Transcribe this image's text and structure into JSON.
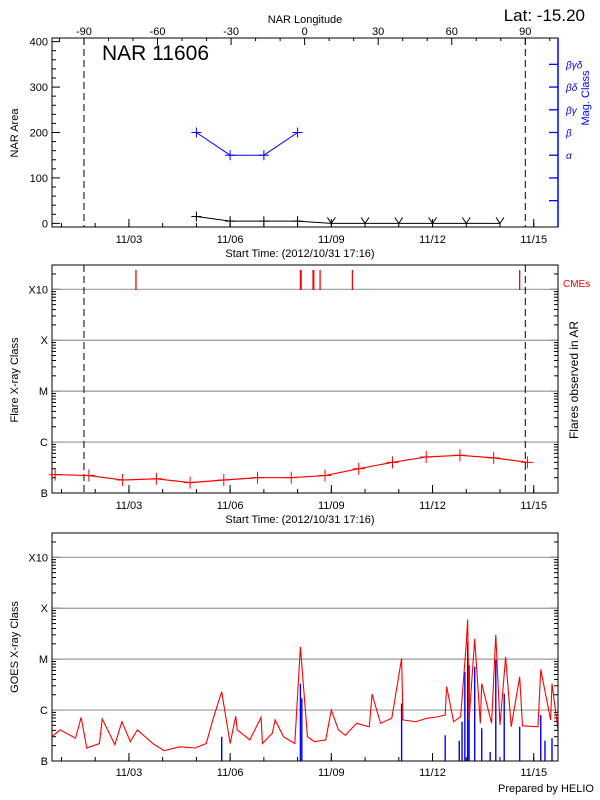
{
  "header": {
    "lat_label": "Lat: -15.20"
  },
  "footer": {
    "credit": "Prepared by HELIO"
  },
  "colors": {
    "axis": "#000000",
    "grid": "#999999",
    "mag": "#0000ff",
    "flare": "#ff0000",
    "goes_long": "#ff0000",
    "goes_short": "#0000ff"
  },
  "chart_data": [
    {
      "type": "line",
      "title": "NAR 11606",
      "xlabel": "Start Time: (2012/10/31 17:16)",
      "ylabel": "NAR Area",
      "y2label": "Mag. Class",
      "top_axis_label": "NAR Longitude",
      "top_ticks": [
        -90,
        -60,
        -30,
        0,
        30,
        60,
        90
      ],
      "limb_dates": [
        "2012-11-01T16:00",
        "2012-11-14T18:00"
      ],
      "xlim": [
        "2012-10-31T17:16",
        "2012-11-15T17:16"
      ],
      "x_ticks": [
        "11/03",
        "11/06",
        "11/09",
        "11/12",
        "11/15"
      ],
      "ylim": [
        -8,
        408
      ],
      "y_ticks": [
        0,
        100,
        200,
        300,
        400
      ],
      "y2_ticks": [
        {
          "value": 50,
          "label": ""
        },
        {
          "value": 100,
          "label": ""
        },
        {
          "value": 150,
          "label": "α"
        },
        {
          "value": 200,
          "label": "β"
        },
        {
          "value": 250,
          "label": "βγ"
        },
        {
          "value": 300,
          "label": "βδ"
        },
        {
          "value": 350,
          "label": "βγδ"
        }
      ],
      "area_series": [
        {
          "date": "2012-11-05T00:00",
          "value": 15
        },
        {
          "date": "2012-11-06T00:00",
          "value": 5
        },
        {
          "date": "2012-11-07T00:00",
          "value": 5
        },
        {
          "date": "2012-11-08T00:00",
          "value": 5
        },
        {
          "date": "2012-11-09T00:00",
          "value": 0
        },
        {
          "date": "2012-11-10T00:00",
          "value": 0
        },
        {
          "date": "2012-11-11T00:00",
          "value": 0
        },
        {
          "date": "2012-11-12T00:00",
          "value": 0
        },
        {
          "date": "2012-11-13T00:00",
          "value": 0
        },
        {
          "date": "2012-11-14T00:00",
          "value": 0
        }
      ],
      "mag_series": [
        {
          "date": "2012-11-05T00:00",
          "class": "β"
        },
        {
          "date": "2012-11-06T00:00",
          "class": "α"
        },
        {
          "date": "2012-11-07T00:00",
          "class": "α"
        },
        {
          "date": "2012-11-08T00:00",
          "class": "β"
        }
      ]
    },
    {
      "type": "line",
      "xlabel": "Start Time: (2012/10/31 17:16)",
      "ylabel": "Flare X-ray Class",
      "y2label": "Flares observed in AR",
      "cme_label": "CMEs",
      "yscale": "log",
      "xlim": [
        "2012-10-31T17:16",
        "2012-11-15T17:16"
      ],
      "x_ticks": [
        "11/03",
        "11/06",
        "11/09",
        "11/12",
        "11/15"
      ],
      "ylim": [
        1e-07,
        0.003
      ],
      "y_ticks": [
        {
          "value": 1e-07,
          "label": "B"
        },
        {
          "value": 1e-06,
          "label": "C"
        },
        {
          "value": 1e-05,
          "label": "M"
        },
        {
          "value": 0.0001,
          "label": "X"
        },
        {
          "value": 0.001,
          "label": "X10"
        }
      ],
      "grid": true,
      "limb_dates": [
        "2012-11-01T16:00",
        "2012-11-14T18:00"
      ],
      "cme_dates": [
        "2012-11-03T05:00",
        "2012-11-08T02:00",
        "2012-11-08T02:30",
        "2012-11-08T11:00",
        "2012-11-08T11:30",
        "2012-11-08T16:00",
        "2012-11-09T15:00",
        "2012-11-14T14:00"
      ],
      "flare_series": [
        {
          "date": "2012-10-31T19:30",
          "flux": 2.3e-07
        },
        {
          "date": "2012-11-01T19:30",
          "flux": 2.2e-07
        },
        {
          "date": "2012-11-02T19:30",
          "flux": 1.8e-07
        },
        {
          "date": "2012-11-03T19:30",
          "flux": 1.9e-07
        },
        {
          "date": "2012-11-04T19:30",
          "flux": 1.6e-07
        },
        {
          "date": "2012-11-05T19:30",
          "flux": 1.8e-07
        },
        {
          "date": "2012-11-06T19:30",
          "flux": 2e-07
        },
        {
          "date": "2012-11-07T19:30",
          "flux": 2e-07
        },
        {
          "date": "2012-11-08T19:30",
          "flux": 2.2e-07
        },
        {
          "date": "2012-11-09T19:30",
          "flux": 3e-07
        },
        {
          "date": "2012-11-10T19:30",
          "flux": 4e-07
        },
        {
          "date": "2012-11-11T19:30",
          "flux": 5.1e-07
        },
        {
          "date": "2012-11-12T19:30",
          "flux": 5.5e-07
        },
        {
          "date": "2012-11-13T19:30",
          "flux": 4.9e-07
        },
        {
          "date": "2012-11-14T19:30",
          "flux": 4e-07
        }
      ]
    },
    {
      "type": "line",
      "ylabel": "GOES X-ray Class",
      "yscale": "log",
      "xlim": [
        "2012-10-31T17:16",
        "2012-11-15T17:16"
      ],
      "x_ticks": [
        "11/03",
        "11/06",
        "11/09",
        "11/12",
        "11/15"
      ],
      "ylim": [
        1e-07,
        0.003
      ],
      "y_ticks": [
        {
          "value": 1e-07,
          "label": "B"
        },
        {
          "value": 1e-06,
          "label": "C"
        },
        {
          "value": 1e-05,
          "label": "M"
        },
        {
          "value": 0.0001,
          "label": "X"
        },
        {
          "value": 0.001,
          "label": "X10"
        }
      ],
      "grid": true,
      "long_channel": [
        [
          "2012-10-31T17:16",
          3e-07
        ],
        [
          "2012-10-31T23:00",
          4.1e-07
        ],
        [
          "2012-11-01T10:00",
          2.8e-07
        ],
        [
          "2012-11-01T14:00",
          7.2e-07
        ],
        [
          "2012-11-01T18:00",
          1.8e-07
        ],
        [
          "2012-11-02T03:00",
          2.2e-07
        ],
        [
          "2012-11-02T05:00",
          6.7e-07
        ],
        [
          "2012-11-02T14:00",
          2.1e-07
        ],
        [
          "2012-11-02T19:00",
          5.9e-07
        ],
        [
          "2012-11-03T01:00",
          2.4e-07
        ],
        [
          "2012-11-03T06:00",
          4.1e-07
        ],
        [
          "2012-11-03T17:00",
          2.2e-07
        ],
        [
          "2012-11-04T01:00",
          1.6e-07
        ],
        [
          "2012-11-04T12:00",
          1.9e-07
        ],
        [
          "2012-11-04T23:00",
          1.8e-07
        ],
        [
          "2012-11-05T07:00",
          2.2e-07
        ],
        [
          "2012-11-05T12:00",
          6.9e-07
        ],
        [
          "2012-11-05T18:00",
          2.3e-06
        ],
        [
          "2012-11-06T00:00",
          2.2e-07
        ],
        [
          "2012-11-06T04:00",
          7.6e-07
        ],
        [
          "2012-11-06T05:00",
          4.1e-07
        ],
        [
          "2012-11-06T14:00",
          2.6e-07
        ],
        [
          "2012-11-06T22:00",
          7.2e-07
        ],
        [
          "2012-11-06T23:00",
          2.2e-07
        ],
        [
          "2012-11-07T06:00",
          3.5e-07
        ],
        [
          "2012-11-07T08:00",
          6.4e-07
        ],
        [
          "2012-11-07T14:00",
          3e-07
        ],
        [
          "2012-11-07T22:00",
          2.2e-07
        ],
        [
          "2012-11-08T02:00",
          1.75e-05
        ],
        [
          "2012-11-08T07:00",
          3e-07
        ],
        [
          "2012-11-08T12:00",
          2.4e-07
        ],
        [
          "2012-11-08T20:00",
          2.6e-07
        ],
        [
          "2012-11-09T00:00",
          1e-06
        ],
        [
          "2012-11-09T05:00",
          4.1e-07
        ],
        [
          "2012-11-09T10:00",
          3.2e-07
        ],
        [
          "2012-11-09T18:00",
          5.5e-07
        ],
        [
          "2012-11-10T03:00",
          4.7e-07
        ],
        [
          "2012-11-10T05:00",
          2.06e-06
        ],
        [
          "2012-11-10T11:00",
          5.5e-07
        ],
        [
          "2012-11-10T19:00",
          6.9e-07
        ],
        [
          "2012-11-11T02:00",
          1.03e-05
        ],
        [
          "2012-11-11T03:00",
          6.4e-07
        ],
        [
          "2012-11-11T12:00",
          5.9e-07
        ],
        [
          "2012-11-11T20:00",
          6.9e-07
        ],
        [
          "2012-11-12T04:00",
          7.4e-07
        ],
        [
          "2012-11-12T09:00",
          8e-07
        ],
        [
          "2012-11-12T10:00",
          2.9e-06
        ],
        [
          "2012-11-12T15:00",
          5.9e-07
        ],
        [
          "2012-11-12T20:00",
          7.4e-07
        ],
        [
          "2012-11-13T00:00",
          2e-05
        ],
        [
          "2012-11-13T01:00",
          6e-05
        ],
        [
          "2012-11-13T02:00",
          6.4e-07
        ],
        [
          "2012-11-13T06:00",
          2.5e-05
        ],
        [
          "2012-11-13T10:00",
          5.5e-07
        ],
        [
          "2012-11-13T11:00",
          3.3e-06
        ],
        [
          "2012-11-13T18:00",
          5.5e-07
        ],
        [
          "2012-11-13T21:00",
          3e-05
        ],
        [
          "2012-11-14T00:00",
          5.1e-07
        ],
        [
          "2012-11-14T04:00",
          1.1e-05
        ],
        [
          "2012-11-14T08:00",
          4.7e-07
        ],
        [
          "2012-11-14T14:00",
          4.5e-06
        ],
        [
          "2012-11-14T16:00",
          4.9e-07
        ],
        [
          "2012-11-15T03:00",
          4.7e-07
        ],
        [
          "2012-11-15T05:00",
          6.3e-06
        ],
        [
          "2012-11-15T12:00",
          6.4e-07
        ],
        [
          "2012-11-15T13:00",
          3.3e-06
        ],
        [
          "2012-11-15T17:16",
          4.1e-07
        ]
      ],
      "short_channel": [
        [
          "2012-11-05T18:00",
          3e-07
        ],
        [
          "2012-11-08T02:00",
          3.3e-06
        ],
        [
          "2012-11-08T03:00",
          1.7e-06
        ],
        [
          "2012-11-11T02:00",
          1.35e-06
        ],
        [
          "2012-11-12T09:00",
          3.2e-07
        ],
        [
          "2012-11-12T19:00",
          2.5e-07
        ],
        [
          "2012-11-12T21:00",
          5.9e-07
        ],
        [
          "2012-11-12T23:00",
          5.6e-06
        ],
        [
          "2012-11-13T01:00",
          2.2e-05
        ],
        [
          "2012-11-13T02:00",
          7.6e-06
        ],
        [
          "2012-11-13T06:00",
          7.1e-06
        ],
        [
          "2012-11-13T11:00",
          4.4e-07
        ],
        [
          "2012-11-13T17:00",
          1.5e-07
        ],
        [
          "2012-11-13T21:00",
          9.6e-06
        ],
        [
          "2012-11-14T03:00",
          2.1e-06
        ],
        [
          "2012-11-14T14:00",
          4.7e-07
        ],
        [
          "2012-11-15T05:00",
          8e-07
        ],
        [
          "2012-11-15T08:00",
          2.5e-07
        ],
        [
          "2012-11-15T13:00",
          2.8e-07
        ]
      ]
    }
  ]
}
